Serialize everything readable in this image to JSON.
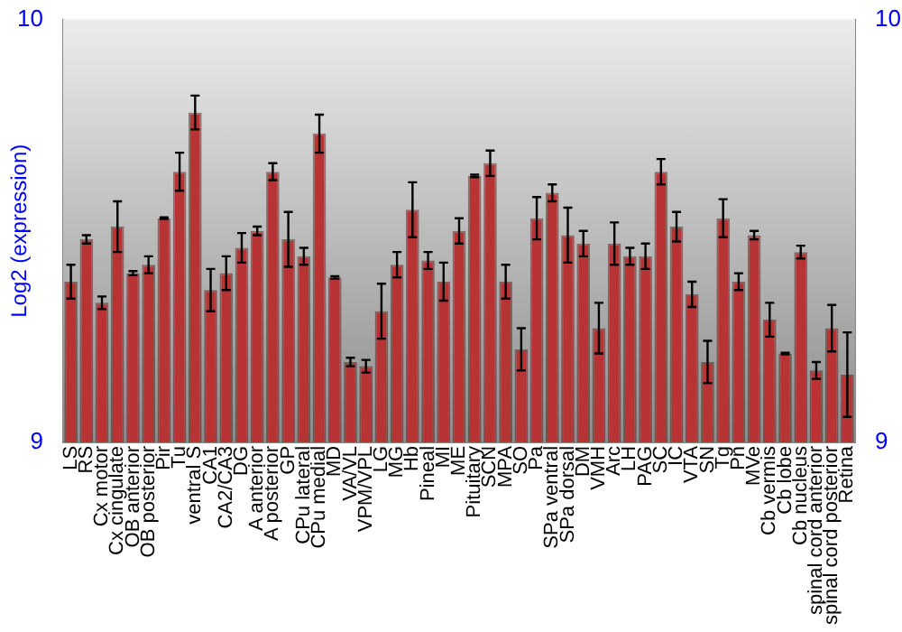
{
  "chart_data": {
    "type": "bar",
    "ylabel": "Log2 (expression)",
    "categories": [
      "LS",
      "RS",
      "Cx motor",
      "Cx cingulate",
      "OB anterior",
      "OB posterior",
      "Pir",
      "Tu",
      "ventral S",
      "CA1",
      "CA2/CA3",
      "DG",
      "A anterior",
      "A posterior",
      "GP",
      "CPu lateral",
      "CPu medial",
      "MD",
      "VA/VL",
      "VPM/VPL",
      "LG",
      "MG",
      "Hb",
      "Pineal",
      "MI",
      "ME",
      "Pituitary",
      "SCN",
      "MPA",
      "SO",
      "Pa",
      "SPa ventral",
      "SPa dorsal",
      "DM",
      "VMH",
      "Arc",
      "LH",
      "PAG",
      "SC",
      "IC",
      "VTA",
      "SN",
      "Tg",
      "Pn",
      "MVe",
      "Cb vermis",
      "Cb lobe",
      "Cb nucleus",
      "spinal cord anterior",
      "spinal cord posterior",
      "Retina"
    ],
    "values": [
      9.38,
      9.48,
      9.33,
      9.51,
      9.4,
      9.42,
      9.53,
      9.64,
      9.78,
      9.36,
      9.4,
      9.46,
      9.5,
      9.64,
      9.48,
      9.44,
      9.73,
      9.39,
      9.19,
      9.18,
      9.31,
      9.42,
      9.55,
      9.43,
      9.38,
      9.5,
      9.63,
      9.66,
      9.38,
      9.22,
      9.53,
      9.59,
      9.49,
      9.47,
      9.27,
      9.47,
      9.44,
      9.44,
      9.64,
      9.51,
      9.35,
      9.19,
      9.53,
      9.38,
      9.49,
      9.29,
      9.21,
      9.45,
      9.17,
      9.27,
      9.16
    ],
    "errors": [
      0.04,
      0.01,
      0.015,
      0.06,
      0.005,
      0.02,
      0.002,
      0.045,
      0.04,
      0.05,
      0.04,
      0.035,
      0.01,
      0.02,
      0.065,
      0.02,
      0.045,
      0.003,
      0.01,
      0.015,
      0.065,
      0.03,
      0.065,
      0.02,
      0.045,
      0.03,
      0.003,
      0.03,
      0.04,
      0.05,
      0.05,
      0.02,
      0.065,
      0.03,
      0.06,
      0.05,
      0.02,
      0.03,
      0.03,
      0.035,
      0.03,
      0.05,
      0.045,
      0.02,
      0.01,
      0.04,
      0.002,
      0.015,
      0.02,
      0.055,
      0.1
    ],
    "color": "#b83434",
    "ylim": [
      9,
      10
    ],
    "yticks": [
      9,
      10
    ],
    "y2lim": [
      9,
      10
    ],
    "y2ticks": [
      9,
      10
    ],
    "grid": false,
    "legend": false
  }
}
